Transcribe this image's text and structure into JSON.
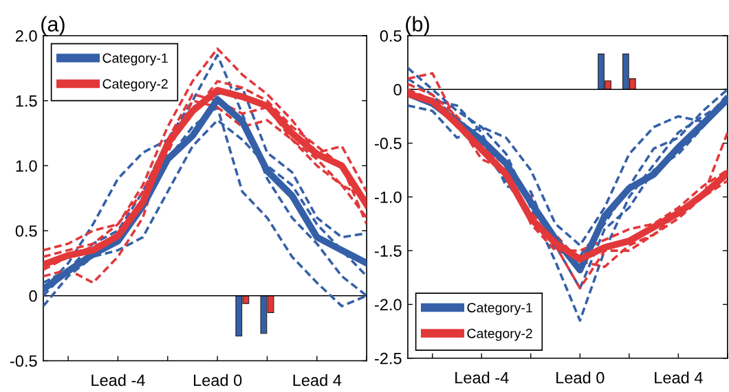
{
  "chart_data": [
    {
      "type": "line",
      "title": "(a)",
      "categories": [
        null,
        null,
        null,
        "Lead -4",
        null,
        null,
        null,
        "Lead 0",
        null,
        null,
        null,
        "Lead 4",
        null,
        null
      ],
      "ylim": [
        -0.5,
        2.0
      ],
      "yticks": [
        {
          "value": -0.5,
          "label": "-0.5"
        },
        {
          "value": 0,
          "label": "0"
        },
        {
          "value": 0.5,
          "label": "0.5"
        },
        {
          "value": 1.0,
          "label": "1.0"
        },
        {
          "value": 1.5,
          "label": "1.5"
        },
        {
          "value": 2.0,
          "label": "2.0"
        }
      ],
      "grid": false,
      "legend": "top left",
      "marker": "none",
      "ref_lines": [
        {
          "axis": "y",
          "value": 0,
          "color": "#000000"
        }
      ],
      "series": [
        {
          "line_style": "dashed",
          "color": "#3560a8",
          "values": [
            0.0,
            0.2,
            0.4,
            0.5,
            0.8,
            1.2,
            1.5,
            1.85,
            1.4,
            0.9,
            0.6,
            0.4,
            0.15,
            0.0
          ]
        },
        {
          "line_style": "dashed",
          "color": "#3560a8",
          "values": [
            -0.08,
            0.15,
            0.3,
            0.45,
            0.75,
            1.05,
            1.3,
            1.45,
            0.8,
            0.6,
            0.3,
            0.1,
            -0.08,
            0.0
          ]
        },
        {
          "line_style": "dashed",
          "color": "#3560a8",
          "values": [
            0.05,
            0.25,
            0.55,
            0.9,
            1.1,
            1.2,
            1.45,
            1.55,
            1.6,
            1.1,
            0.95,
            0.6,
            0.45,
            0.48
          ]
        },
        {
          "line_style": "dashed",
          "color": "#3560a8",
          "values": [
            0.1,
            0.2,
            0.3,
            0.35,
            0.45,
            0.8,
            1.15,
            1.35,
            1.2,
            1.0,
            0.85,
            0.55,
            0.35,
            0.15
          ]
        },
        {
          "line_style": "dashed",
          "color": "#e2383a",
          "values": [
            0.3,
            0.35,
            0.4,
            0.55,
            0.85,
            1.3,
            1.65,
            1.9,
            1.7,
            1.55,
            1.35,
            1.1,
            1.15,
            0.8
          ]
        },
        {
          "line_style": "dashed",
          "color": "#e2383a",
          "values": [
            0.15,
            0.2,
            0.1,
            0.3,
            0.6,
            1.2,
            1.55,
            1.5,
            1.4,
            1.45,
            1.2,
            1.0,
            0.85,
            0.6
          ]
        },
        {
          "line_style": "dashed",
          "color": "#e2383a",
          "values": [
            0.35,
            0.4,
            0.5,
            0.55,
            0.8,
            1.2,
            1.4,
            1.65,
            1.6,
            1.5,
            1.3,
            1.15,
            1.0,
            0.55
          ]
        },
        {
          "line_style": "dashed",
          "color": "#e2383a",
          "values": [
            0.2,
            0.3,
            0.38,
            0.45,
            0.7,
            1.1,
            1.5,
            1.45,
            1.3,
            1.35,
            1.2,
            1.05,
            0.85,
            0.75
          ]
        },
        {
          "line_style": "solid",
          "name": "Category-1",
          "color": "#3560a8",
          "values": [
            0.05,
            0.19,
            0.32,
            0.42,
            0.69,
            1.05,
            1.23,
            1.51,
            1.34,
            0.96,
            0.77,
            0.45,
            0.35,
            0.25
          ]
        },
        {
          "line_style": "solid",
          "name": "Category-2",
          "color": "#e2383a",
          "values": [
            0.24,
            0.31,
            0.35,
            0.46,
            0.72,
            1.17,
            1.42,
            1.58,
            1.53,
            1.46,
            1.25,
            1.09,
            1.0,
            0.7
          ]
        },
        {
          "type": "bar",
          "color": "#3560a8",
          "values": [
            null,
            null,
            null,
            null,
            null,
            null,
            null,
            null,
            -0.31,
            -0.29,
            null,
            null,
            null,
            null
          ]
        },
        {
          "type": "bar",
          "color": "#e2383a",
          "values": [
            null,
            null,
            null,
            null,
            null,
            null,
            null,
            null,
            -0.06,
            -0.13,
            null,
            null,
            null,
            null
          ]
        }
      ]
    },
    {
      "type": "line",
      "title": "(b)",
      "categories": [
        null,
        null,
        null,
        "Lead -4",
        null,
        null,
        null,
        "Lead 0",
        null,
        null,
        null,
        "Lead 4",
        null,
        null
      ],
      "ylim": [
        -2.5,
        0.5
      ],
      "yticks": [
        {
          "value": -2.5,
          "label": "-2.5"
        },
        {
          "value": -2.0,
          "label": "-2.0"
        },
        {
          "value": -1.5,
          "label": "-1.5"
        },
        {
          "value": -1.0,
          "label": "-1.0"
        },
        {
          "value": -0.5,
          "label": "-0.5"
        },
        {
          "value": 0,
          "label": "0"
        },
        {
          "value": 0.5,
          "label": "0.5"
        }
      ],
      "grid": false,
      "legend": "bottom left",
      "marker": "none",
      "ref_lines": [
        {
          "axis": "y",
          "value": 0,
          "color": "#000000"
        }
      ],
      "series": [
        {
          "line_style": "dashed",
          "color": "#3560a8",
          "values": [
            0.2,
            0.0,
            -0.2,
            -0.35,
            -0.6,
            -1.1,
            -1.6,
            -2.15,
            -1.5,
            -1.0,
            -0.7,
            -0.4,
            -0.25,
            -0.1
          ]
        },
        {
          "line_style": "dashed",
          "color": "#3560a8",
          "values": [
            -0.15,
            -0.2,
            -0.45,
            -0.35,
            -0.45,
            -0.75,
            -1.25,
            -1.45,
            -1.1,
            -0.6,
            -0.35,
            -0.25,
            -0.3,
            -0.05
          ]
        },
        {
          "line_style": "dashed",
          "color": "#3560a8",
          "values": [
            0.1,
            -0.05,
            -0.3,
            -0.55,
            -0.85,
            -1.2,
            -1.45,
            -1.85,
            -1.3,
            -1.1,
            -0.75,
            -0.6,
            -0.35,
            -0.1
          ]
        },
        {
          "line_style": "dashed",
          "color": "#3560a8",
          "values": [
            0.0,
            -0.1,
            -0.15,
            -0.4,
            -0.9,
            -0.95,
            -1.5,
            -1.55,
            -1.25,
            -0.9,
            -0.55,
            -0.45,
            -0.2,
            0.0
          ]
        },
        {
          "line_style": "dashed",
          "color": "#e2383a",
          "values": [
            0.1,
            0.15,
            -0.3,
            -0.65,
            -0.75,
            -1.0,
            -1.45,
            -1.85,
            -1.5,
            -1.5,
            -1.35,
            -1.2,
            -1.0,
            -0.4
          ]
        },
        {
          "line_style": "dashed",
          "color": "#e2383a",
          "values": [
            0.0,
            -0.1,
            -0.35,
            -0.55,
            -0.7,
            -1.25,
            -1.5,
            -1.5,
            -1.4,
            -1.3,
            -1.25,
            -1.1,
            -0.9,
            -0.75
          ]
        },
        {
          "line_style": "dashed",
          "color": "#e2383a",
          "values": [
            0.05,
            -0.05,
            -0.25,
            -0.5,
            -0.8,
            -1.15,
            -1.35,
            -1.6,
            -1.65,
            -1.45,
            -1.35,
            -1.15,
            -1.0,
            -0.85
          ]
        },
        {
          "line_style": "solid",
          "name": "Category-1",
          "color": "#3560a8",
          "values": [
            -0.04,
            -0.13,
            -0.3,
            -0.47,
            -0.69,
            -1.05,
            -1.39,
            -1.68,
            -1.18,
            -0.92,
            -0.79,
            -0.54,
            -0.32,
            -0.09
          ]
        },
        {
          "line_style": "solid",
          "name": "Category-2",
          "color": "#e2383a",
          "values": [
            -0.04,
            -0.11,
            -0.32,
            -0.56,
            -0.79,
            -1.2,
            -1.43,
            -1.58,
            -1.47,
            -1.41,
            -1.28,
            -1.15,
            -0.98,
            -0.78
          ]
        },
        {
          "type": "bar",
          "color": "#3560a8",
          "values": [
            null,
            null,
            null,
            null,
            null,
            null,
            null,
            null,
            0.33,
            0.33,
            null,
            null,
            null,
            null
          ]
        },
        {
          "type": "bar",
          "color": "#e2383a",
          "values": [
            null,
            null,
            null,
            null,
            null,
            null,
            null,
            null,
            0.08,
            0.1,
            null,
            null,
            null,
            null
          ]
        }
      ]
    }
  ]
}
